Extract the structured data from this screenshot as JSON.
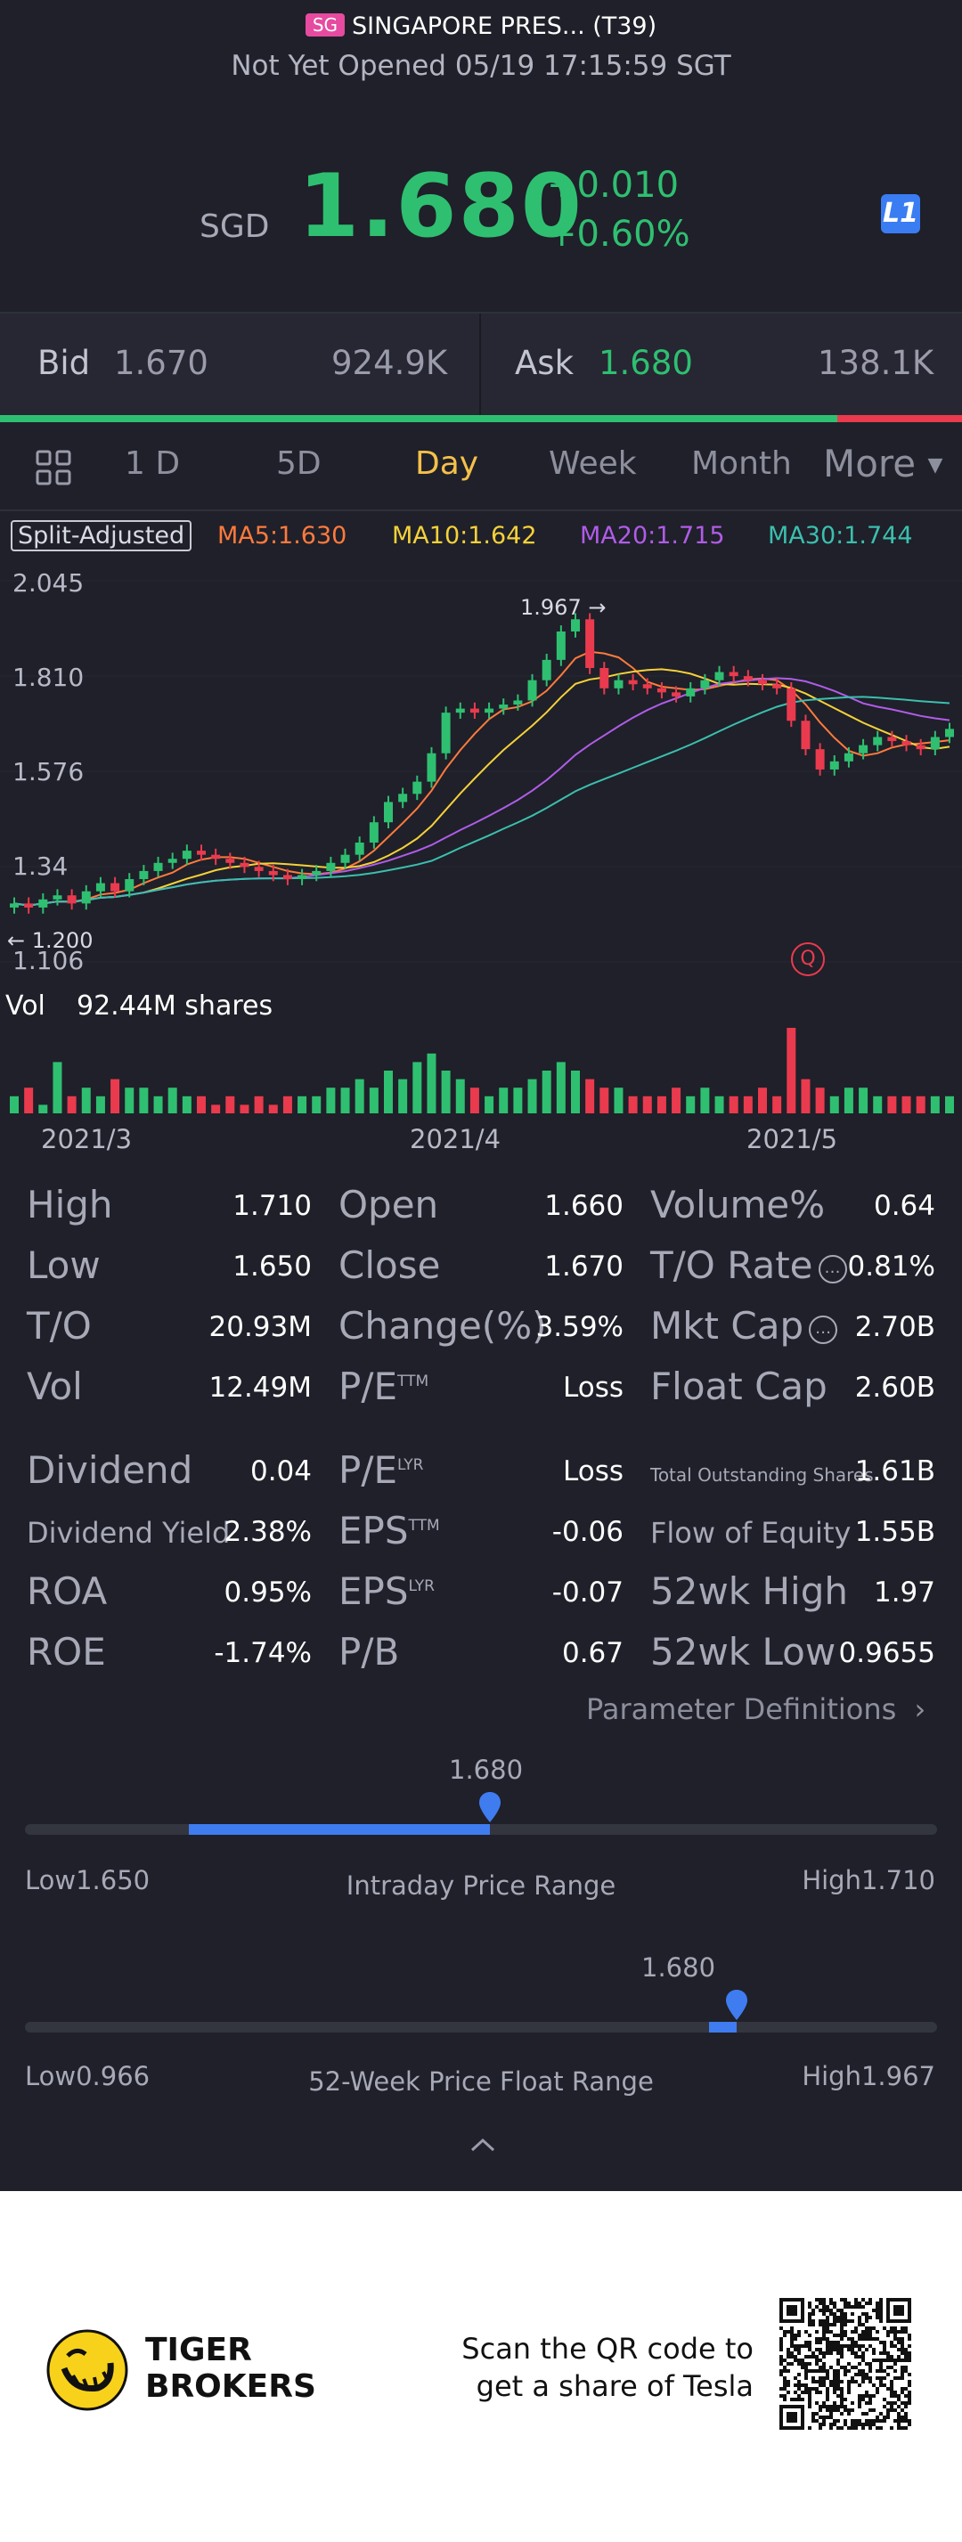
{
  "header": {
    "market_badge": "SG",
    "name": "SINGAPORE PRES... (T39)",
    "status": "Not Yet Opened 05/19 17:15:59 SGT",
    "currency": "SGD",
    "price": "1.680",
    "change": "+0.010",
    "change_pct": "+0.60%",
    "level_badge": "L1"
  },
  "bid_ask": {
    "bid_label": "Bid",
    "bid_price": "1.670",
    "bid_size": "924.9K",
    "ask_label": "Ask",
    "ask_price": "1.680",
    "ask_size": "138.1K",
    "bid_share": 0.87
  },
  "tabs": {
    "items": [
      "1 D",
      "5D",
      "Day",
      "Week",
      "Month",
      "More"
    ],
    "active": "Day"
  },
  "ma": {
    "split_label": "Split-Adjusted",
    "ma5": "MA5:1.630",
    "ma10": "MA10:1.642",
    "ma20": "MA20:1.715",
    "ma30": "MA30:1.744",
    "colors": {
      "ma5": "#ff7a3d",
      "ma10": "#f5d13a",
      "ma20": "#b05ce8",
      "ma30": "#3bbfae"
    }
  },
  "chart_data": {
    "type": "candlestick",
    "y_ticks": [
      "2.045",
      "1.810",
      "1.576",
      "1.34",
      "1.106"
    ],
    "ylim": [
      1.106,
      2.045
    ],
    "x_ticks": [
      "2021/3",
      "2021/4",
      "2021/5"
    ],
    "high_annotation": "1.967",
    "low_annotation": "1.200",
    "closes": [
      1.25,
      1.24,
      1.26,
      1.27,
      1.25,
      1.28,
      1.3,
      1.28,
      1.31,
      1.33,
      1.35,
      1.36,
      1.38,
      1.37,
      1.36,
      1.35,
      1.34,
      1.33,
      1.32,
      1.31,
      1.32,
      1.33,
      1.35,
      1.37,
      1.4,
      1.45,
      1.5,
      1.52,
      1.55,
      1.62,
      1.72,
      1.73,
      1.72,
      1.73,
      1.74,
      1.75,
      1.8,
      1.85,
      1.92,
      1.95,
      1.83,
      1.78,
      1.8,
      1.79,
      1.78,
      1.77,
      1.76,
      1.78,
      1.8,
      1.82,
      1.81,
      1.8,
      1.79,
      1.78,
      1.7,
      1.63,
      1.58,
      1.6,
      1.62,
      1.64,
      1.66,
      1.65,
      1.64,
      1.63,
      1.66,
      1.68
    ],
    "volume_label": "Vol",
    "volume_value": "92.44M shares"
  },
  "stats": {
    "col1": [
      {
        "label": "High",
        "value": "1.710"
      },
      {
        "label": "Low",
        "value": "1.650"
      },
      {
        "label": "T/O",
        "value": "20.93M"
      },
      {
        "label": "Vol",
        "value": "12.49M"
      },
      {
        "label": "Dividend",
        "value": "0.04"
      },
      {
        "label": "Dividend Yield",
        "value": "2.38%"
      },
      {
        "label": "ROA",
        "value": "0.95%"
      },
      {
        "label": "ROE",
        "value": "-1.74%"
      }
    ],
    "col2": [
      {
        "label": "Open",
        "value": "1.660"
      },
      {
        "label": "Close",
        "value": "1.670"
      },
      {
        "label": "Change(%)",
        "value": "3.59%"
      },
      {
        "label": "P/E",
        "sup": "TTM",
        "value": "Loss"
      },
      {
        "label": "P/E",
        "sup": "LYR",
        "value": "Loss"
      },
      {
        "label": "EPS",
        "sup": "TTM",
        "value": "-0.06"
      },
      {
        "label": "EPS",
        "sup": "LYR",
        "value": "-0.07"
      },
      {
        "label": "P/B",
        "value": "0.67"
      }
    ],
    "col3": [
      {
        "label": "Volume%",
        "value": "0.64"
      },
      {
        "label": "T/O Rate",
        "value": "0.81%"
      },
      {
        "label": "Mkt Cap",
        "value": "2.70B"
      },
      {
        "label": "Float Cap",
        "value": "2.60B"
      },
      {
        "label": "Total Outstanding Shares",
        "value": "1.61B"
      },
      {
        "label": "Flow of Equity",
        "value": "1.55B"
      },
      {
        "label": "52wk High",
        "value": "1.97"
      },
      {
        "label": "52wk Low",
        "value": "0.9655"
      }
    ],
    "param_link": "Parameter Definitions"
  },
  "intraday_range": {
    "current": "1.680",
    "low": "Low1.650",
    "high": "High1.710",
    "title": "Intraday Price Range",
    "fill_from": 0.18,
    "position": 0.51
  },
  "week52_range": {
    "current": "1.680",
    "low": "Low0.966",
    "high": "High1.967",
    "title": "52-Week Price Float Range",
    "fill_from": 0.75,
    "position": 0.78
  },
  "footer": {
    "brand_line1": "TIGER",
    "brand_line2": "BROKERS",
    "scan_line1": "Scan the QR code to",
    "scan_line2": "get a share of Tesla"
  }
}
